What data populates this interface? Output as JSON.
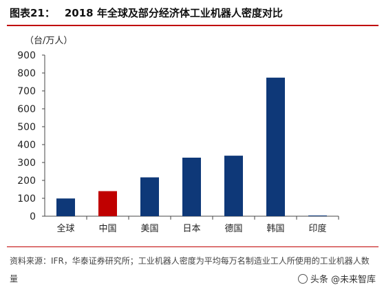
{
  "header": {
    "figure_label": "图表21：",
    "title": "2018 年全球及部分经济体工业机器人密度对比"
  },
  "chart_data": {
    "type": "bar",
    "unit_label": "（台/万人）",
    "categories": [
      "全球",
      "中国",
      "美国",
      "日本",
      "德国",
      "韩国",
      "印度"
    ],
    "values": [
      99,
      140,
      217,
      327,
      338,
      774,
      4
    ],
    "ylim": [
      0,
      900
    ],
    "yticks": [
      "0",
      "100",
      "200",
      "300",
      "400",
      "500",
      "600",
      "700",
      "800",
      "900"
    ],
    "grid": false,
    "colors": {
      "default": "#0e3878",
      "highlight": "#c00000"
    },
    "highlight_category": "中国"
  },
  "source": {
    "text": "资料来源：IFR，华泰证券研究所；工业机器人密度为平均每万名制造业工人所使用的工业机器人数量"
  },
  "watermark": {
    "text": "头条 @未来智库"
  }
}
